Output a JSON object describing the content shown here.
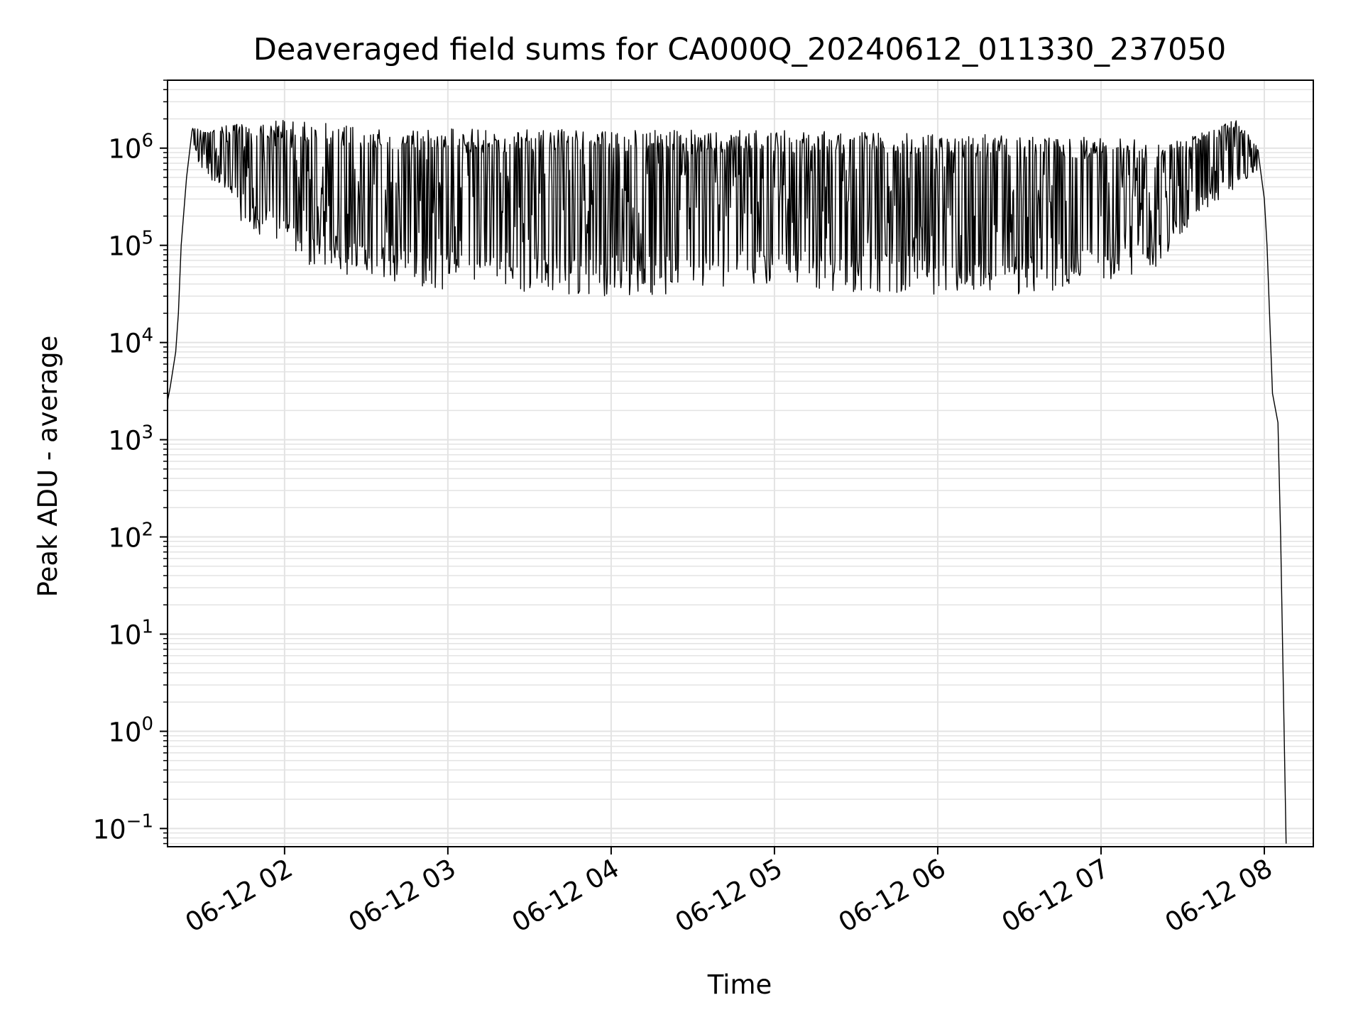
{
  "chart_data": {
    "type": "line",
    "title": "Deaveraged field sums for CA000Q_20240612_011330_237050",
    "xlabel": "Time",
    "ylabel": "Peak ADU - average",
    "yscale": "log",
    "grid": true,
    "xlim": [
      "2024-06-12 01:17",
      "2024-06-12 08:18"
    ],
    "ylim": [
      0.065,
      5000000
    ],
    "x_ticks": [
      {
        "value": "2024-06-12 02:00",
        "label": "06-12 02"
      },
      {
        "value": "2024-06-12 03:00",
        "label": "06-12 03"
      },
      {
        "value": "2024-06-12 04:00",
        "label": "06-12 04"
      },
      {
        "value": "2024-06-12 05:00",
        "label": "06-12 05"
      },
      {
        "value": "2024-06-12 06:00",
        "label": "06-12 06"
      },
      {
        "value": "2024-06-12 07:00",
        "label": "06-12 07"
      },
      {
        "value": "2024-06-12 08:00",
        "label": "06-12 08"
      }
    ],
    "y_ticks": [
      {
        "value": 0.1,
        "base": "10",
        "exp": "−1"
      },
      {
        "value": 1,
        "base": "10",
        "exp": "0"
      },
      {
        "value": 10,
        "base": "10",
        "exp": "1"
      },
      {
        "value": 100,
        "base": "10",
        "exp": "2"
      },
      {
        "value": 1000,
        "base": "10",
        "exp": "3"
      },
      {
        "value": 10000,
        "base": "10",
        "exp": "4"
      },
      {
        "value": 100000,
        "base": "10",
        "exp": "5"
      },
      {
        "value": 1000000,
        "base": "10",
        "exp": "6"
      }
    ],
    "series": [
      {
        "color": "#000000",
        "description": "Rapidly fluctuating signal; upper envelope and lower envelope bound the spikes",
        "rise": [
          {
            "x": "2024-06-12 01:17",
            "y": 2500
          },
          {
            "x": "2024-06-12 01:18",
            "y": 3500
          },
          {
            "x": "2024-06-12 01:20",
            "y": 8000
          },
          {
            "x": "2024-06-12 01:21",
            "y": 20000
          },
          {
            "x": "2024-06-12 01:22",
            "y": 100000
          },
          {
            "x": "2024-06-12 01:24",
            "y": 500000
          },
          {
            "x": "2024-06-12 01:26",
            "y": 1500000
          }
        ],
        "upper_envelope": [
          {
            "x": "2024-06-12 01:26",
            "y": 1600000
          },
          {
            "x": "2024-06-12 01:45",
            "y": 1800000
          },
          {
            "x": "2024-06-12 02:00",
            "y": 2000000
          },
          {
            "x": "2024-06-12 02:30",
            "y": 1700000
          },
          {
            "x": "2024-06-12 03:00",
            "y": 1600000
          },
          {
            "x": "2024-06-12 04:00",
            "y": 1550000
          },
          {
            "x": "2024-06-12 05:00",
            "y": 1550000
          },
          {
            "x": "2024-06-12 06:00",
            "y": 1500000
          },
          {
            "x": "2024-06-12 06:30",
            "y": 1300000
          },
          {
            "x": "2024-06-12 07:00",
            "y": 1300000
          },
          {
            "x": "2024-06-12 07:30",
            "y": 1200000
          },
          {
            "x": "2024-06-12 07:50",
            "y": 2000000
          },
          {
            "x": "2024-06-12 07:58",
            "y": 1000000
          }
        ],
        "lower_envelope": [
          {
            "x": "2024-06-12 01:26",
            "y": 1200000
          },
          {
            "x": "2024-06-12 01:30",
            "y": 500000
          },
          {
            "x": "2024-06-12 01:40",
            "y": 350000
          },
          {
            "x": "2024-06-12 01:45",
            "y": 150000
          },
          {
            "x": "2024-06-12 02:00",
            "y": 100000
          },
          {
            "x": "2024-06-12 02:10",
            "y": 60000
          },
          {
            "x": "2024-06-12 02:30",
            "y": 45000
          },
          {
            "x": "2024-06-12 03:00",
            "y": 35000
          },
          {
            "x": "2024-06-12 04:00",
            "y": 30000
          },
          {
            "x": "2024-06-12 05:00",
            "y": 35000
          },
          {
            "x": "2024-06-12 06:00",
            "y": 30000
          },
          {
            "x": "2024-06-12 06:30",
            "y": 30000
          },
          {
            "x": "2024-06-12 07:00",
            "y": 40000
          },
          {
            "x": "2024-06-12 07:20",
            "y": 60000
          },
          {
            "x": "2024-06-12 07:35",
            "y": 200000
          },
          {
            "x": "2024-06-12 07:50",
            "y": 400000
          },
          {
            "x": "2024-06-12 07:58",
            "y": 600000
          }
        ],
        "fall": [
          {
            "x": "2024-06-12 07:58",
            "y": 800000
          },
          {
            "x": "2024-06-12 08:00",
            "y": 300000
          },
          {
            "x": "2024-06-12 08:01",
            "y": 100000
          },
          {
            "x": "2024-06-12 08:03",
            "y": 3000
          },
          {
            "x": "2024-06-12 08:05",
            "y": 1500
          },
          {
            "x": "2024-06-12 08:06",
            "y": 100
          },
          {
            "x": "2024-06-12 08:08",
            "y": 0.07
          }
        ]
      }
    ]
  }
}
